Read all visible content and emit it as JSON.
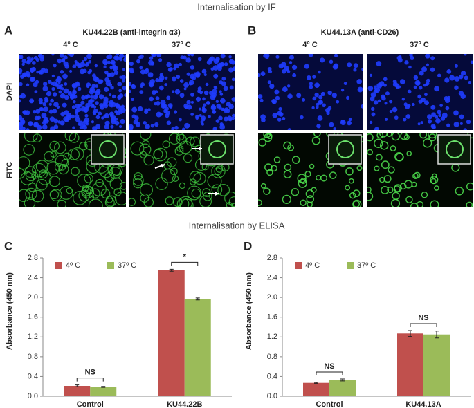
{
  "header_if": "Internalisation by IF",
  "panel_a": {
    "label": "A",
    "antibody": "KU44.22B  (anti-integrin α3)",
    "col1": "4° C",
    "col2": "37° C",
    "row1": "DAPI",
    "row2": "FITC"
  },
  "panel_b": {
    "label": "B",
    "antibody": "KU44.13A (anti-CD26)",
    "col1": "4° C",
    "col2": "37° C"
  },
  "header_elisa": "Internalisation by ELISA",
  "chart_data": [
    {
      "type": "bar",
      "panel": "C",
      "ylabel": "Absorbance (450 nm)",
      "categories": [
        "Control",
        "KU44.22B"
      ],
      "series": [
        {
          "name": "4º C",
          "color": "#c0504d",
          "values": [
            0.21,
            2.55
          ],
          "errors": [
            0.02,
            0.02
          ]
        },
        {
          "name": "37º C",
          "color": "#9bbb59",
          "values": [
            0.19,
            1.97
          ],
          "errors": [
            0.01,
            0.02
          ]
        }
      ],
      "ylim": [
        0,
        2.8
      ],
      "yticks": [
        {
          "value": 0,
          "label": "0.0"
        },
        {
          "value": 0.4,
          "label": "0.4"
        },
        {
          "value": 0.8,
          "label": "0.8"
        },
        {
          "value": 1.2,
          "label": "1.2"
        },
        {
          "value": 1.6,
          "label": "1.6"
        },
        {
          "value": 2.0,
          "label": "2.0"
        },
        {
          "value": 2.4,
          "label": "2.4"
        },
        {
          "value": 2.8,
          "label": "2.8"
        }
      ],
      "annotations": [
        "NS",
        "*"
      ]
    },
    {
      "type": "bar",
      "panel": "D",
      "ylabel": "Absorbance (450 nm)",
      "categories": [
        "Control",
        "KU44.13A"
      ],
      "series": [
        {
          "name": "4º C",
          "color": "#c0504d",
          "values": [
            0.27,
            1.27
          ],
          "errors": [
            0.01,
            0.06
          ]
        },
        {
          "name": "37º C",
          "color": "#9bbb59",
          "values": [
            0.33,
            1.25
          ],
          "errors": [
            0.02,
            0.07
          ]
        }
      ],
      "ylim": [
        0,
        2.8
      ],
      "yticks": [
        {
          "value": 0,
          "label": "0.0"
        },
        {
          "value": 0.4,
          "label": "0.4"
        },
        {
          "value": 0.8,
          "label": "0.8"
        },
        {
          "value": 1.2,
          "label": "1.2"
        },
        {
          "value": 1.6,
          "label": "1.6"
        },
        {
          "value": 2.0,
          "label": "2.0"
        },
        {
          "value": 2.4,
          "label": "2.4"
        },
        {
          "value": 2.8,
          "label": "2.8"
        }
      ],
      "annotations": [
        "NS",
        "NS"
      ]
    }
  ]
}
